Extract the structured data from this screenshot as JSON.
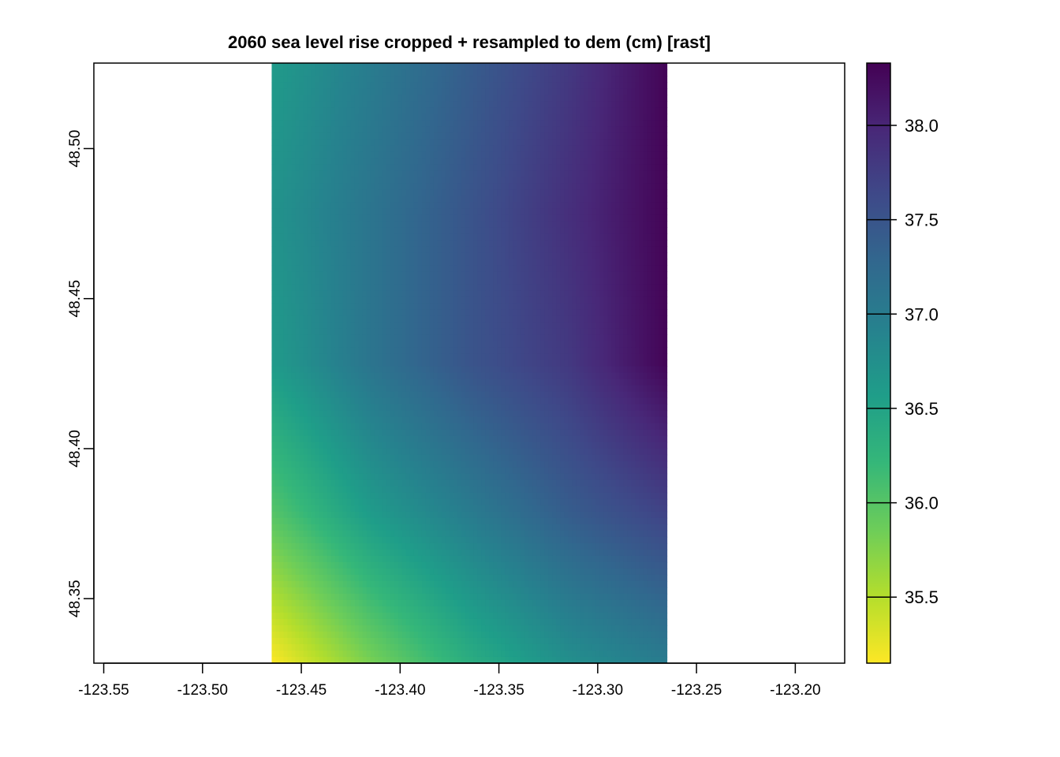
{
  "chart_data": {
    "type": "heatmap",
    "title": "2060 sea level rise cropped + resampled to dem (cm) [rast]",
    "xlabel": "",
    "ylabel": "",
    "xlim": [
      -123.555,
      -123.175
    ],
    "ylim": [
      48.3285,
      48.5285
    ],
    "x_ticks": [
      -123.55,
      -123.5,
      -123.45,
      -123.4,
      -123.35,
      -123.3,
      -123.25,
      -123.2
    ],
    "x_tick_labels": [
      "-123.55",
      "-123.50",
      "-123.45",
      "-123.40",
      "-123.35",
      "-123.30",
      "-123.25",
      "-123.20"
    ],
    "y_ticks": [
      48.35,
      48.4,
      48.45,
      48.5
    ],
    "y_tick_labels": [
      "48.35",
      "48.40",
      "48.45",
      "48.50"
    ],
    "raster_extent": {
      "xmin": -123.465,
      "xmax": -123.265,
      "ymin": 48.3285,
      "ymax": 48.5285
    },
    "grid_x": [
      -123.465,
      -123.415,
      -123.365,
      -123.315,
      -123.265
    ],
    "grid_y": [
      48.5285,
      48.4785,
      48.4285,
      48.3785,
      48.3285
    ],
    "values": [
      [
        36.6,
        37.0,
        37.4,
        37.8,
        38.3
      ],
      [
        36.7,
        37.1,
        37.5,
        37.9,
        38.3
      ],
      [
        36.6,
        37.1,
        37.5,
        37.8,
        38.3
      ],
      [
        36.0,
        36.6,
        37.0,
        37.4,
        37.7
      ],
      [
        35.15,
        35.8,
        36.35,
        36.75,
        37.0
      ]
    ],
    "colorbar": {
      "min": 35.15,
      "max": 38.33,
      "ticks": [
        35.5,
        36.0,
        36.5,
        37.0,
        37.5,
        38.0
      ],
      "tick_labels": [
        "35.5",
        "36.0",
        "36.5",
        "37.0",
        "37.5",
        "38.0"
      ]
    },
    "palette": [
      "#FDE725",
      "#B4DE2C",
      "#6DCD59",
      "#35B779",
      "#1F9E89",
      "#26828E",
      "#31688E",
      "#3E4A89",
      "#482878",
      "#440154"
    ],
    "grid": false,
    "legend": "right"
  }
}
